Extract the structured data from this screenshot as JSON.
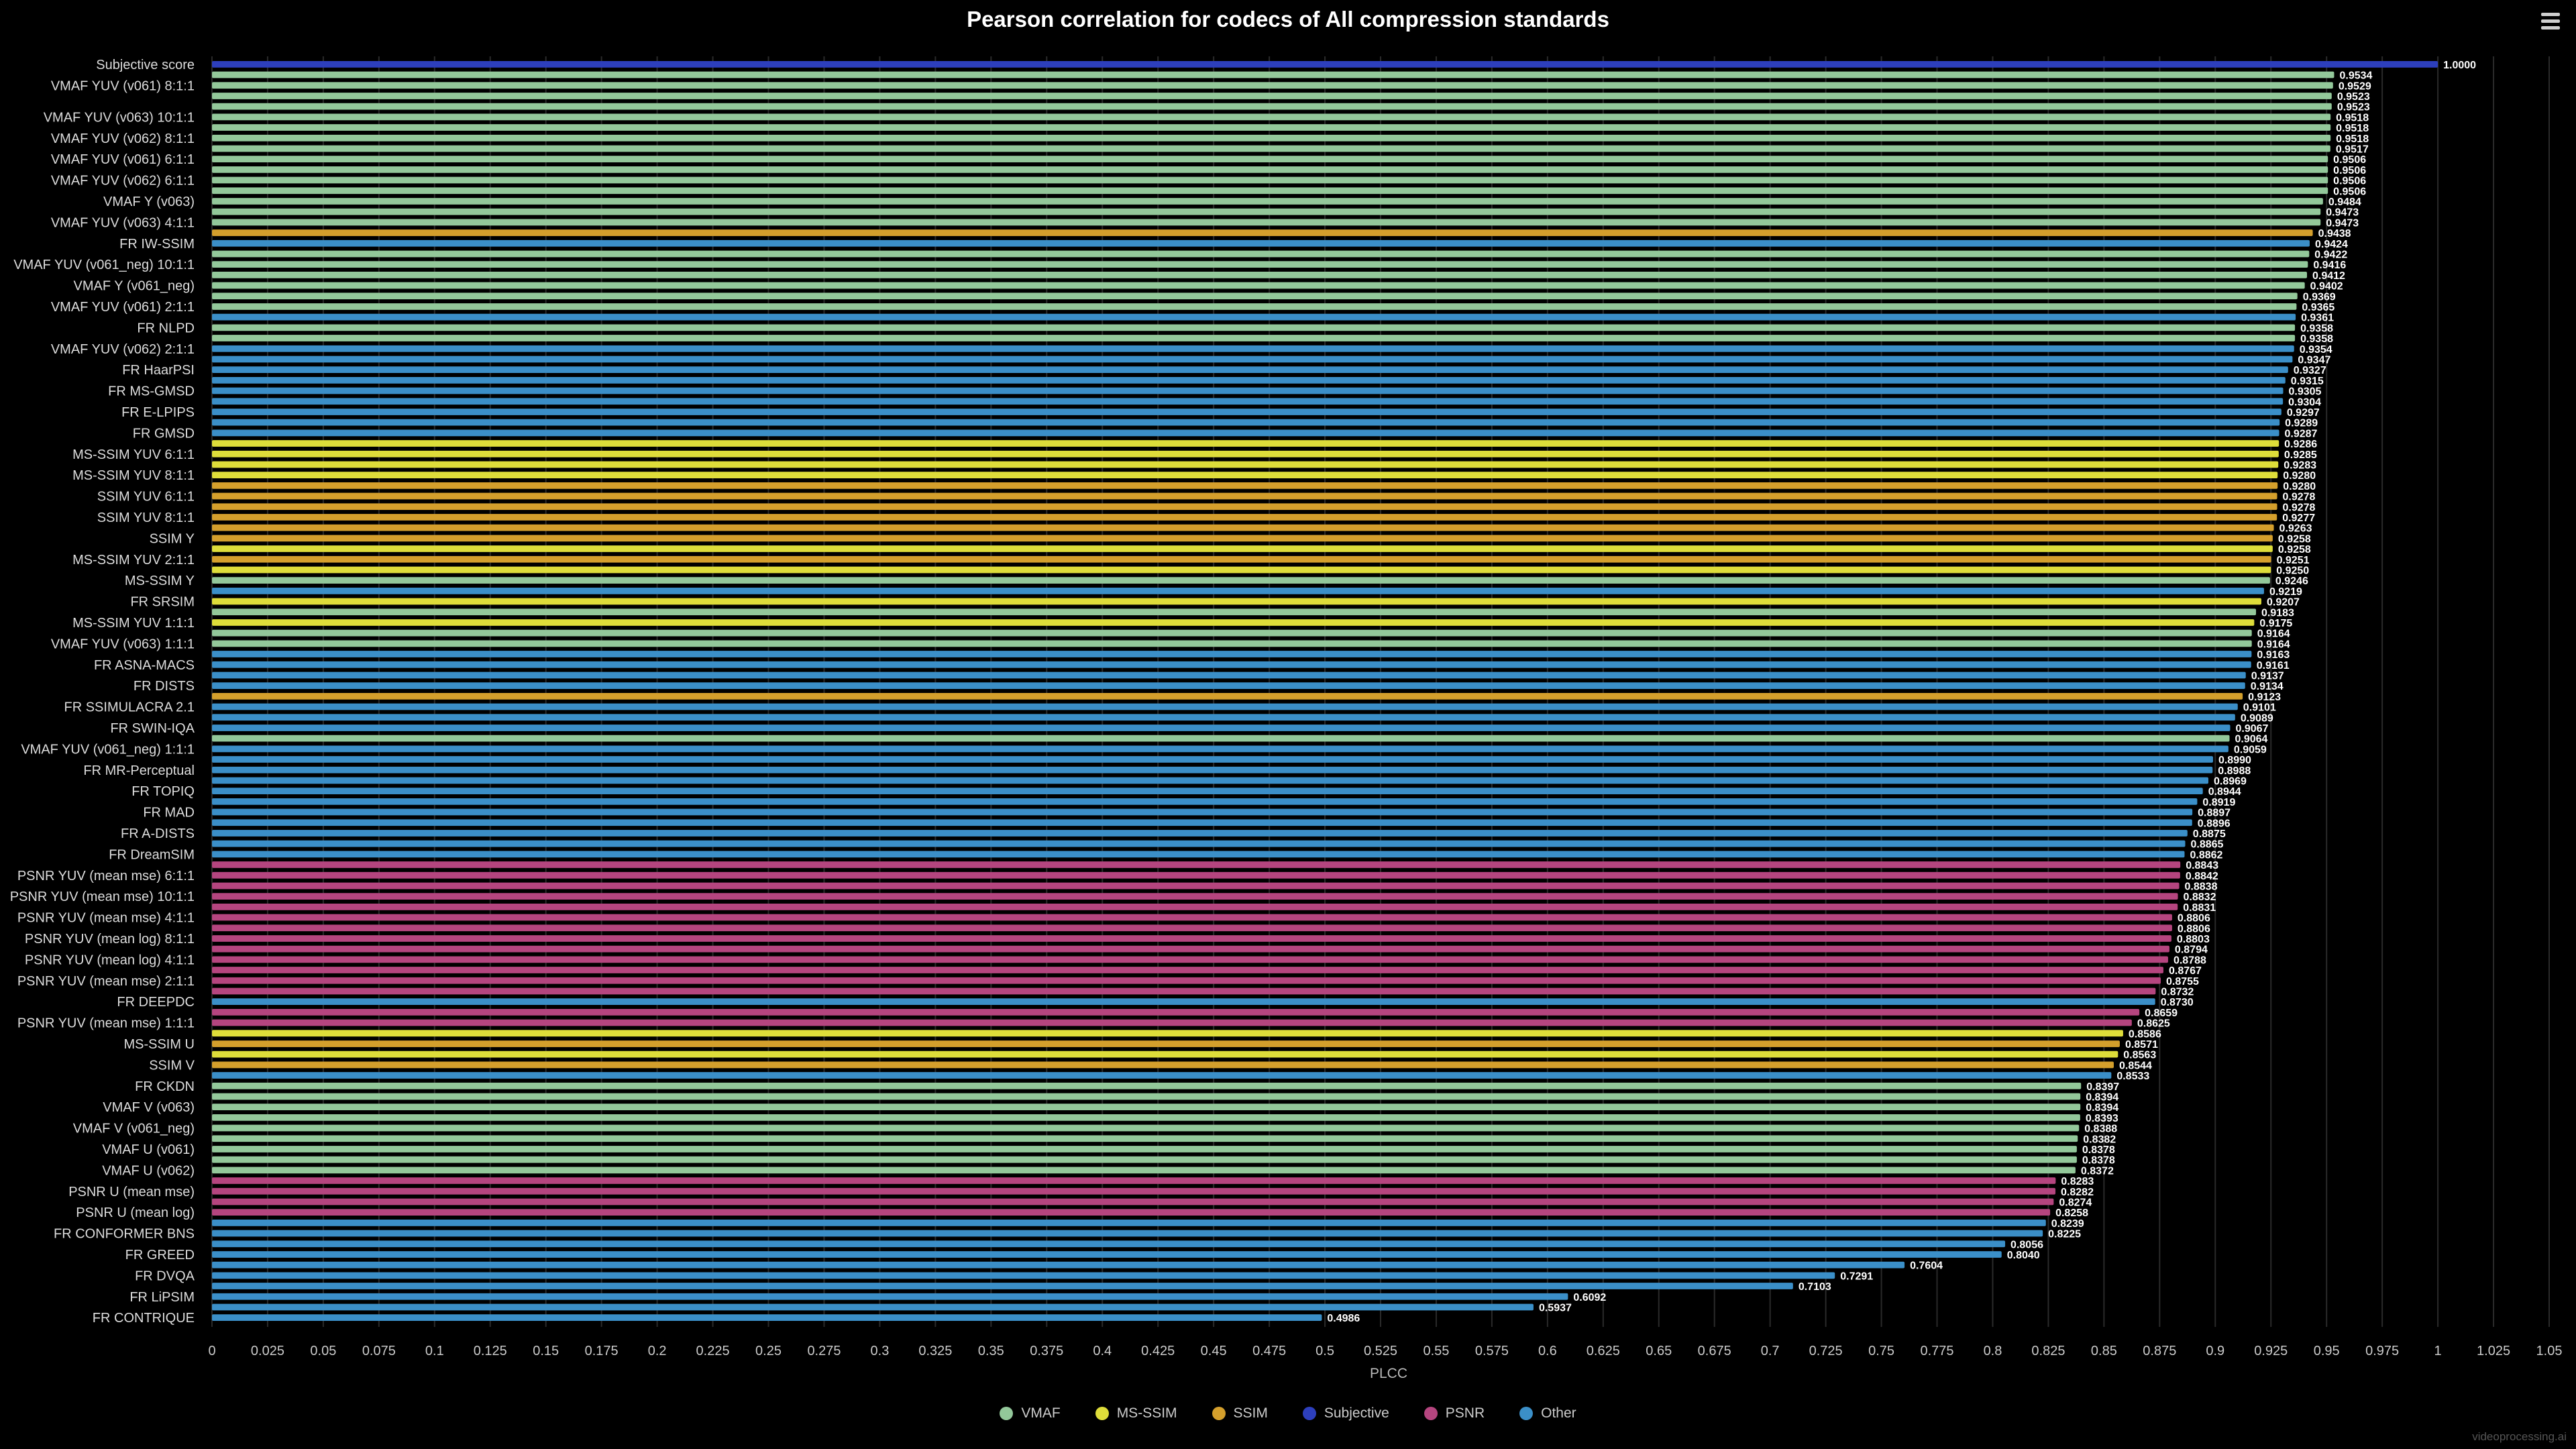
{
  "chart_data": {
    "type": "bar",
    "orientation": "horizontal",
    "title": "Pearson correlation for codecs of All compression standards",
    "xlabel": "PLCC",
    "ylabel": "",
    "xlim": [
      0,
      1.05
    ],
    "x_ticks": [
      "0",
      "0.025",
      "0.05",
      "0.075",
      "0.1",
      "0.125",
      "0.15",
      "0.175",
      "0.2",
      "0.225",
      "0.25",
      "0.275",
      "0.3",
      "0.325",
      "0.35",
      "0.375",
      "0.4",
      "0.425",
      "0.45",
      "0.475",
      "0.5",
      "0.525",
      "0.55",
      "0.575",
      "0.6",
      "0.625",
      "0.65",
      "0.675",
      "0.7",
      "0.725",
      "0.75",
      "0.775",
      "0.8",
      "0.825",
      "0.85",
      "0.875",
      "0.9",
      "0.925",
      "0.95",
      "0.975",
      "1",
      "1.025",
      "1.05"
    ],
    "grid": true,
    "legend_position": "bottom-center",
    "legend": [
      {
        "key": "VMAF",
        "label": "VMAF",
        "color": "#93c89a"
      },
      {
        "key": "MS-SSIM",
        "label": "MS-SSIM",
        "color": "#dedd3a"
      },
      {
        "key": "SSIM",
        "label": "SSIM",
        "color": "#d49f2c"
      },
      {
        "key": "Subjective",
        "label": "Subjective",
        "color": "#2d3fbd"
      },
      {
        "key": "PSNR",
        "label": "PSNR",
        "color": "#b5457f"
      },
      {
        "key": "Other",
        "label": "Other",
        "color": "#3b8fc8"
      }
    ],
    "bars": [
      {
        "label": "Subjective score",
        "value": 1.0,
        "value_label": "1.0000",
        "group": "Subjective"
      },
      {
        "label": "",
        "value": 0.9534,
        "value_label": "0.9534",
        "group": "VMAF"
      },
      {
        "label": "VMAF YUV (v061) 8:1:1",
        "value": 0.9529,
        "value_label": "0.9529",
        "group": "VMAF"
      },
      {
        "label": "",
        "value": 0.9523,
        "value_label": "0.9523",
        "group": "VMAF"
      },
      {
        "label": "",
        "value": 0.9523,
        "value_label": "0.9523",
        "group": "VMAF"
      },
      {
        "label": "VMAF YUV (v063) 10:1:1",
        "value": 0.9518,
        "value_label": "0.9518",
        "group": "VMAF"
      },
      {
        "label": "",
        "value": 0.9518,
        "value_label": "0.9518",
        "group": "VMAF"
      },
      {
        "label": "VMAF YUV (v062) 8:1:1",
        "value": 0.9518,
        "value_label": "0.9518",
        "group": "VMAF"
      },
      {
        "label": "",
        "value": 0.9517,
        "value_label": "0.9517",
        "group": "VMAF"
      },
      {
        "label": "VMAF YUV (v061) 6:1:1",
        "value": 0.9506,
        "value_label": "0.9506",
        "group": "VMAF"
      },
      {
        "label": "",
        "value": 0.9506,
        "value_label": "0.9506",
        "group": "VMAF"
      },
      {
        "label": "VMAF YUV (v062) 6:1:1",
        "value": 0.9506,
        "value_label": "0.9506",
        "group": "VMAF"
      },
      {
        "label": "",
        "value": 0.9506,
        "value_label": "0.9506",
        "group": "VMAF"
      },
      {
        "label": "VMAF Y (v063)",
        "value": 0.9484,
        "value_label": "0.9484",
        "group": "VMAF"
      },
      {
        "label": "",
        "value": 0.9473,
        "value_label": "0.9473",
        "group": "VMAF"
      },
      {
        "label": "VMAF YUV (v063) 4:1:1",
        "value": 0.9473,
        "value_label": "0.9473",
        "group": "VMAF"
      },
      {
        "label": "",
        "value": 0.9438,
        "value_label": "0.9438",
        "group": "SSIM"
      },
      {
        "label": "FR IW-SSIM",
        "value": 0.9424,
        "value_label": "0.9424",
        "group": "Other"
      },
      {
        "label": "",
        "value": 0.9422,
        "value_label": "0.9422",
        "group": "VMAF"
      },
      {
        "label": "VMAF YUV (v061_neg) 10:1:1",
        "value": 0.9416,
        "value_label": "0.9416",
        "group": "VMAF"
      },
      {
        "label": "",
        "value": 0.9412,
        "value_label": "0.9412",
        "group": "VMAF"
      },
      {
        "label": "VMAF Y (v061_neg)",
        "value": 0.9402,
        "value_label": "0.9402",
        "group": "VMAF"
      },
      {
        "label": "",
        "value": 0.9369,
        "value_label": "0.9369",
        "group": "VMAF"
      },
      {
        "label": "VMAF YUV (v061) 2:1:1",
        "value": 0.9365,
        "value_label": "0.9365",
        "group": "VMAF"
      },
      {
        "label": "",
        "value": 0.9361,
        "value_label": "0.9361",
        "group": "Other"
      },
      {
        "label": "FR NLPD",
        "value": 0.9358,
        "value_label": "0.9358",
        "group": "VMAF"
      },
      {
        "label": "",
        "value": 0.9358,
        "value_label": "0.9358",
        "group": "VMAF"
      },
      {
        "label": "VMAF YUV (v062) 2:1:1",
        "value": 0.9354,
        "value_label": "0.9354",
        "group": "Other"
      },
      {
        "label": "",
        "value": 0.9347,
        "value_label": "0.9347",
        "group": "Other"
      },
      {
        "label": "FR HaarPSI",
        "value": 0.9327,
        "value_label": "0.9327",
        "group": "Other"
      },
      {
        "label": "",
        "value": 0.9315,
        "value_label": "0.9315",
        "group": "Other"
      },
      {
        "label": "FR MS-GMSD",
        "value": 0.9305,
        "value_label": "0.9305",
        "group": "Other"
      },
      {
        "label": "",
        "value": 0.9304,
        "value_label": "0.9304",
        "group": "Other"
      },
      {
        "label": "FR E-LPIPS",
        "value": 0.9297,
        "value_label": "0.9297",
        "group": "Other"
      },
      {
        "label": "",
        "value": 0.9289,
        "value_label": "0.9289",
        "group": "Other"
      },
      {
        "label": "FR GMSD",
        "value": 0.9287,
        "value_label": "0.9287",
        "group": "Other"
      },
      {
        "label": "",
        "value": 0.9286,
        "value_label": "0.9286",
        "group": "MS-SSIM"
      },
      {
        "label": "MS-SSIM YUV 6:1:1",
        "value": 0.9285,
        "value_label": "0.9285",
        "group": "MS-SSIM"
      },
      {
        "label": "",
        "value": 0.9283,
        "value_label": "0.9283",
        "group": "MS-SSIM"
      },
      {
        "label": "MS-SSIM YUV 8:1:1",
        "value": 0.928,
        "value_label": "0.9280",
        "group": "MS-SSIM"
      },
      {
        "label": "",
        "value": 0.928,
        "value_label": "0.9280",
        "group": "SSIM"
      },
      {
        "label": "SSIM YUV 6:1:1",
        "value": 0.9278,
        "value_label": "0.9278",
        "group": "SSIM"
      },
      {
        "label": "",
        "value": 0.9278,
        "value_label": "0.9278",
        "group": "SSIM"
      },
      {
        "label": "SSIM YUV 8:1:1",
        "value": 0.9277,
        "value_label": "0.9277",
        "group": "SSIM"
      },
      {
        "label": "",
        "value": 0.9263,
        "value_label": "0.9263",
        "group": "SSIM"
      },
      {
        "label": "SSIM Y",
        "value": 0.9258,
        "value_label": "0.9258",
        "group": "SSIM"
      },
      {
        "label": "",
        "value": 0.9258,
        "value_label": "0.9258",
        "group": "MS-SSIM"
      },
      {
        "label": "MS-SSIM YUV 2:1:1",
        "value": 0.9251,
        "value_label": "0.9251",
        "group": "SSIM"
      },
      {
        "label": "",
        "value": 0.925,
        "value_label": "0.9250",
        "group": "MS-SSIM"
      },
      {
        "label": "MS-SSIM Y",
        "value": 0.9246,
        "value_label": "0.9246",
        "group": "VMAF"
      },
      {
        "label": "",
        "value": 0.9219,
        "value_label": "0.9219",
        "group": "Other"
      },
      {
        "label": "FR SRSIM",
        "value": 0.9207,
        "value_label": "0.9207",
        "group": "MS-SSIM"
      },
      {
        "label": "",
        "value": 0.9183,
        "value_label": "0.9183",
        "group": "VMAF"
      },
      {
        "label": "MS-SSIM YUV 1:1:1",
        "value": 0.9175,
        "value_label": "0.9175",
        "group": "MS-SSIM"
      },
      {
        "label": "",
        "value": 0.9164,
        "value_label": "0.9164",
        "group": "VMAF"
      },
      {
        "label": "VMAF YUV (v063) 1:1:1",
        "value": 0.9164,
        "value_label": "0.9164",
        "group": "VMAF"
      },
      {
        "label": "",
        "value": 0.9163,
        "value_label": "0.9163",
        "group": "Other"
      },
      {
        "label": "FR ASNA-MACS",
        "value": 0.9161,
        "value_label": "0.9161",
        "group": "Other"
      },
      {
        "label": "",
        "value": 0.9137,
        "value_label": "0.9137",
        "group": "Other"
      },
      {
        "label": "FR DISTS",
        "value": 0.9134,
        "value_label": "0.9134",
        "group": "Other"
      },
      {
        "label": "",
        "value": 0.9123,
        "value_label": "0.9123",
        "group": "SSIM"
      },
      {
        "label": "FR SSIMULACRA 2.1",
        "value": 0.9101,
        "value_label": "0.9101",
        "group": "Other"
      },
      {
        "label": "",
        "value": 0.9089,
        "value_label": "0.9089",
        "group": "Other"
      },
      {
        "label": "FR SWIN-IQA",
        "value": 0.9067,
        "value_label": "0.9067",
        "group": "Other"
      },
      {
        "label": "",
        "value": 0.9064,
        "value_label": "0.9064",
        "group": "VMAF"
      },
      {
        "label": "VMAF YUV (v061_neg) 1:1:1",
        "value": 0.9059,
        "value_label": "0.9059",
        "group": "Other"
      },
      {
        "label": "",
        "value": 0.899,
        "value_label": "0.8990",
        "group": "Other"
      },
      {
        "label": "FR MR-Perceptual",
        "value": 0.8988,
        "value_label": "0.8988",
        "group": "Other"
      },
      {
        "label": "",
        "value": 0.8969,
        "value_label": "0.8969",
        "group": "Other"
      },
      {
        "label": "FR TOPIQ",
        "value": 0.8944,
        "value_label": "0.8944",
        "group": "Other"
      },
      {
        "label": "",
        "value": 0.8919,
        "value_label": "0.8919",
        "group": "Other"
      },
      {
        "label": "FR MAD",
        "value": 0.8897,
        "value_label": "0.8897",
        "group": "Other"
      },
      {
        "label": "",
        "value": 0.8896,
        "value_label": "0.8896",
        "group": "Other"
      },
      {
        "label": "FR A-DISTS",
        "value": 0.8875,
        "value_label": "0.8875",
        "group": "Other"
      },
      {
        "label": "",
        "value": 0.8865,
        "value_label": "0.8865",
        "group": "Other"
      },
      {
        "label": "FR DreamSIM",
        "value": 0.8862,
        "value_label": "0.8862",
        "group": "Other"
      },
      {
        "label": "",
        "value": 0.8843,
        "value_label": "0.8843",
        "group": "PSNR"
      },
      {
        "label": "PSNR YUV (mean mse) 6:1:1",
        "value": 0.8842,
        "value_label": "0.8842",
        "group": "PSNR"
      },
      {
        "label": "",
        "value": 0.8838,
        "value_label": "0.8838",
        "group": "PSNR"
      },
      {
        "label": "PSNR YUV (mean mse) 10:1:1",
        "value": 0.8832,
        "value_label": "0.8832",
        "group": "PSNR"
      },
      {
        "label": "",
        "value": 0.8831,
        "value_label": "0.8831",
        "group": "PSNR"
      },
      {
        "label": "PSNR YUV (mean mse) 4:1:1",
        "value": 0.8806,
        "value_label": "0.8806",
        "group": "PSNR"
      },
      {
        "label": "",
        "value": 0.8806,
        "value_label": "0.8806",
        "group": "PSNR"
      },
      {
        "label": "PSNR YUV (mean log) 8:1:1",
        "value": 0.8803,
        "value_label": "0.8803",
        "group": "PSNR"
      },
      {
        "label": "",
        "value": 0.8794,
        "value_label": "0.8794",
        "group": "PSNR"
      },
      {
        "label": "PSNR YUV (mean log) 4:1:1",
        "value": 0.8788,
        "value_label": "0.8788",
        "group": "PSNR"
      },
      {
        "label": "",
        "value": 0.8767,
        "value_label": "0.8767",
        "group": "PSNR"
      },
      {
        "label": "PSNR YUV (mean mse) 2:1:1",
        "value": 0.8755,
        "value_label": "0.8755",
        "group": "PSNR"
      },
      {
        "label": "",
        "value": 0.8732,
        "value_label": "0.8732",
        "group": "PSNR"
      },
      {
        "label": "FR DEEPDC",
        "value": 0.873,
        "value_label": "0.8730",
        "group": "Other"
      },
      {
        "label": "",
        "value": 0.8659,
        "value_label": "0.8659",
        "group": "PSNR"
      },
      {
        "label": "PSNR YUV (mean mse) 1:1:1",
        "value": 0.8625,
        "value_label": "0.8625",
        "group": "PSNR"
      },
      {
        "label": "",
        "value": 0.8586,
        "value_label": "0.8586",
        "group": "MS-SSIM"
      },
      {
        "label": "MS-SSIM U",
        "value": 0.8571,
        "value_label": "0.8571",
        "group": "SSIM"
      },
      {
        "label": "",
        "value": 0.8563,
        "value_label": "0.8563",
        "group": "MS-SSIM"
      },
      {
        "label": "SSIM V",
        "value": 0.8544,
        "value_label": "0.8544",
        "group": "SSIM"
      },
      {
        "label": "",
        "value": 0.8533,
        "value_label": "0.8533",
        "group": "Other"
      },
      {
        "label": "FR CKDN",
        "value": 0.8397,
        "value_label": "0.8397",
        "group": "VMAF"
      },
      {
        "label": "",
        "value": 0.8394,
        "value_label": "0.8394",
        "group": "VMAF"
      },
      {
        "label": "VMAF V (v063)",
        "value": 0.8394,
        "value_label": "0.8394",
        "group": "VMAF"
      },
      {
        "label": "",
        "value": 0.8393,
        "value_label": "0.8393",
        "group": "VMAF"
      },
      {
        "label": "VMAF V (v061_neg)",
        "value": 0.8388,
        "value_label": "0.8388",
        "group": "VMAF"
      },
      {
        "label": "",
        "value": 0.8382,
        "value_label": "0.8382",
        "group": "VMAF"
      },
      {
        "label": "VMAF U (v061)",
        "value": 0.8378,
        "value_label": "0.8378",
        "group": "VMAF"
      },
      {
        "label": "",
        "value": 0.8378,
        "value_label": "0.8378",
        "group": "VMAF"
      },
      {
        "label": "VMAF U (v062)",
        "value": 0.8372,
        "value_label": "0.8372",
        "group": "VMAF"
      },
      {
        "label": "",
        "value": 0.8283,
        "value_label": "0.8283",
        "group": "PSNR"
      },
      {
        "label": "PSNR U (mean mse)",
        "value": 0.8282,
        "value_label": "0.8282",
        "group": "PSNR"
      },
      {
        "label": "",
        "value": 0.8274,
        "value_label": "0.8274",
        "group": "PSNR"
      },
      {
        "label": "PSNR U (mean log)",
        "value": 0.8258,
        "value_label": "0.8258",
        "group": "PSNR"
      },
      {
        "label": "",
        "value": 0.8239,
        "value_label": "0.8239",
        "group": "Other"
      },
      {
        "label": "FR CONFORMER BNS",
        "value": 0.8225,
        "value_label": "0.8225",
        "group": "Other"
      },
      {
        "label": "",
        "value": 0.8056,
        "value_label": "0.8056",
        "group": "Other"
      },
      {
        "label": "FR GREED",
        "value": 0.804,
        "value_label": "0.8040",
        "group": "Other"
      },
      {
        "label": "",
        "value": 0.7604,
        "value_label": "0.7604",
        "group": "Other"
      },
      {
        "label": "FR DVQA",
        "value": 0.7291,
        "value_label": "0.7291",
        "group": "Other"
      },
      {
        "label": "",
        "value": 0.7103,
        "value_label": "0.7103",
        "group": "Other"
      },
      {
        "label": "FR LiPSIM",
        "value": 0.6092,
        "value_label": "0.6092",
        "group": "Other"
      },
      {
        "label": "",
        "value": 0.5937,
        "value_label": "0.5937",
        "group": "Other"
      },
      {
        "label": "FR CONTRIQUE",
        "value": 0.4986,
        "value_label": "0.4986",
        "group": "Other"
      }
    ]
  },
  "ui": {
    "menu_icon": "hamburger-menu-icon",
    "credit": "videoprocessing.ai"
  }
}
